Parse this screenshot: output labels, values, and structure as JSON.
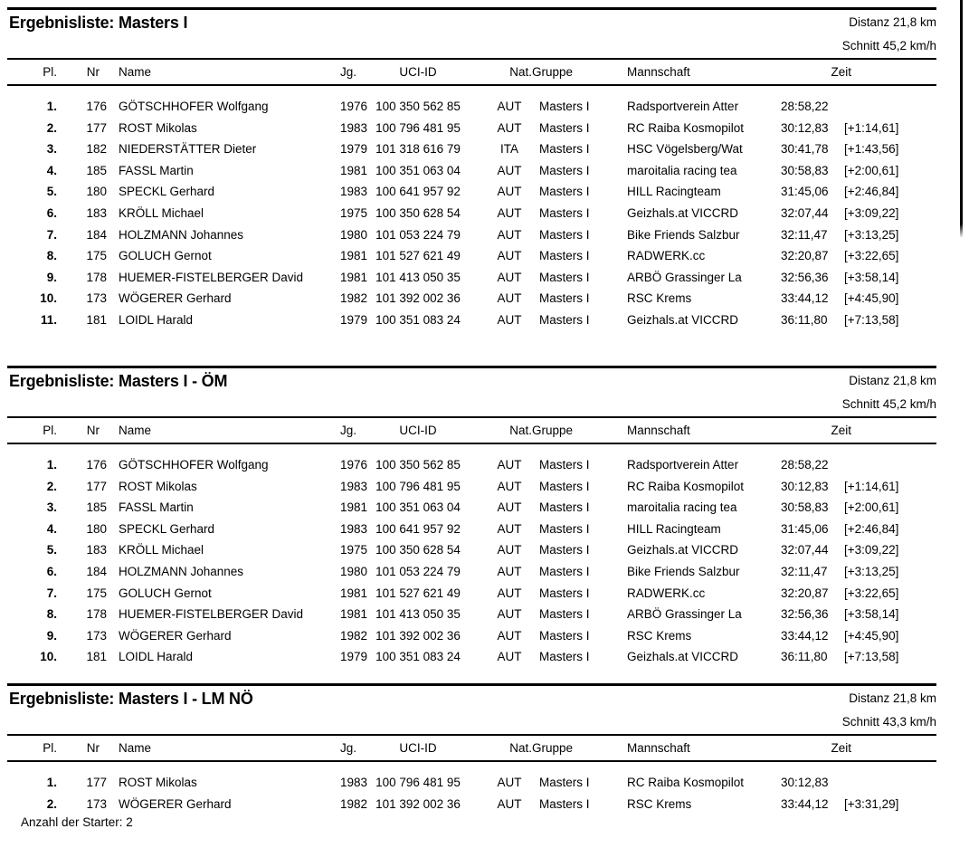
{
  "columns": {
    "pl": "Pl.",
    "nr": "Nr",
    "name": "Name",
    "jg": "Jg.",
    "uci": "UCI-ID",
    "nat": "Nat.",
    "gruppe": "Gruppe",
    "mannschaft": "Mannschaft",
    "zeit": "Zeit"
  },
  "tables": [
    {
      "title": "Ergebnisliste: Masters I",
      "distance": "Distanz 21,8 km",
      "average": "Schnitt 45,2 km/h",
      "rows": [
        {
          "pl": "1.",
          "nr": "176",
          "name": "GÖTSCHHOFER Wolfgang",
          "jg": "1976",
          "uci": "100 350 562 85",
          "nat": "AUT",
          "gruppe": "Masters I",
          "mannschaft": "Radsportverein Atter",
          "zeit": "28:58,22",
          "diff": ""
        },
        {
          "pl": "2.",
          "nr": "177",
          "name": "ROST Mikolas",
          "jg": "1983",
          "uci": "100 796 481 95",
          "nat": "AUT",
          "gruppe": "Masters I",
          "mannschaft": "RC Raiba Kosmopilot",
          "zeit": "30:12,83",
          "diff": "[+1:14,61]"
        },
        {
          "pl": "3.",
          "nr": "182",
          "name": "NIEDERSTÄTTER Dieter",
          "jg": "1979",
          "uci": "101 318 616 79",
          "nat": "ITA",
          "gruppe": "Masters I",
          "mannschaft": "HSC Vögelsberg/Wat",
          "zeit": "30:41,78",
          "diff": "[+1:43,56]"
        },
        {
          "pl": "4.",
          "nr": "185",
          "name": "FASSL Martin",
          "jg": "1981",
          "uci": "100 351 063 04",
          "nat": "AUT",
          "gruppe": "Masters I",
          "mannschaft": "maroitalia racing tea",
          "zeit": "30:58,83",
          "diff": "[+2:00,61]"
        },
        {
          "pl": "5.",
          "nr": "180",
          "name": "SPECKL Gerhard",
          "jg": "1983",
          "uci": "100 641 957 92",
          "nat": "AUT",
          "gruppe": "Masters I",
          "mannschaft": "HILL Racingteam",
          "zeit": "31:45,06",
          "diff": "[+2:46,84]"
        },
        {
          "pl": "6.",
          "nr": "183",
          "name": "KRÖLL Michael",
          "jg": "1975",
          "uci": "100 350 628 54",
          "nat": "AUT",
          "gruppe": "Masters I",
          "mannschaft": "Geizhals.at VICCRD",
          "zeit": "32:07,44",
          "diff": "[+3:09,22]"
        },
        {
          "pl": "7.",
          "nr": "184",
          "name": "HOLZMANN Johannes",
          "jg": "1980",
          "uci": "101 053 224 79",
          "nat": "AUT",
          "gruppe": "Masters I",
          "mannschaft": "Bike Friends Salzbur",
          "zeit": "32:11,47",
          "diff": "[+3:13,25]"
        },
        {
          "pl": "8.",
          "nr": "175",
          "name": "GOLUCH Gernot",
          "jg": "1981",
          "uci": "101 527 621 49",
          "nat": "AUT",
          "gruppe": "Masters I",
          "mannschaft": "RADWERK.cc",
          "zeit": "32:20,87",
          "diff": "[+3:22,65]"
        },
        {
          "pl": "9.",
          "nr": "178",
          "name": "HUEMER-FISTELBERGER David",
          "jg": "1981",
          "uci": "101 413 050 35",
          "nat": "AUT",
          "gruppe": "Masters I",
          "mannschaft": "ARBÖ Grassinger La",
          "zeit": "32:56,36",
          "diff": "[+3:58,14]"
        },
        {
          "pl": "10.",
          "nr": "173",
          "name": "WÖGERER Gerhard",
          "jg": "1982",
          "uci": "101 392 002 36",
          "nat": "AUT",
          "gruppe": "Masters I",
          "mannschaft": "RSC Krems",
          "zeit": "33:44,12",
          "diff": "[+4:45,90]"
        },
        {
          "pl": "11.",
          "nr": "181",
          "name": "LOIDL Harald",
          "jg": "1979",
          "uci": "100 351 083 24",
          "nat": "AUT",
          "gruppe": "Masters I",
          "mannschaft": "Geizhals.at VICCRD",
          "zeit": "36:11,80",
          "diff": "[+7:13,58]"
        }
      ]
    },
    {
      "title": "Ergebnisliste: Masters I - ÖM",
      "distance": "Distanz 21,8 km",
      "average": "Schnitt 45,2 km/h",
      "rows": [
        {
          "pl": "1.",
          "nr": "176",
          "name": "GÖTSCHHOFER Wolfgang",
          "jg": "1976",
          "uci": "100 350 562 85",
          "nat": "AUT",
          "gruppe": "Masters I",
          "mannschaft": "Radsportverein Atter",
          "zeit": "28:58,22",
          "diff": ""
        },
        {
          "pl": "2.",
          "nr": "177",
          "name": "ROST Mikolas",
          "jg": "1983",
          "uci": "100 796 481 95",
          "nat": "AUT",
          "gruppe": "Masters I",
          "mannschaft": "RC Raiba Kosmopilot",
          "zeit": "30:12,83",
          "diff": "[+1:14,61]"
        },
        {
          "pl": "3.",
          "nr": "185",
          "name": "FASSL Martin",
          "jg": "1981",
          "uci": "100 351 063 04",
          "nat": "AUT",
          "gruppe": "Masters I",
          "mannschaft": "maroitalia racing tea",
          "zeit": "30:58,83",
          "diff": "[+2:00,61]"
        },
        {
          "pl": "4.",
          "nr": "180",
          "name": "SPECKL Gerhard",
          "jg": "1983",
          "uci": "100 641 957 92",
          "nat": "AUT",
          "gruppe": "Masters I",
          "mannschaft": "HILL Racingteam",
          "zeit": "31:45,06",
          "diff": "[+2:46,84]"
        },
        {
          "pl": "5.",
          "nr": "183",
          "name": "KRÖLL Michael",
          "jg": "1975",
          "uci": "100 350 628 54",
          "nat": "AUT",
          "gruppe": "Masters I",
          "mannschaft": "Geizhals.at VICCRD",
          "zeit": "32:07,44",
          "diff": "[+3:09,22]"
        },
        {
          "pl": "6.",
          "nr": "184",
          "name": "HOLZMANN Johannes",
          "jg": "1980",
          "uci": "101 053 224 79",
          "nat": "AUT",
          "gruppe": "Masters I",
          "mannschaft": "Bike Friends Salzbur",
          "zeit": "32:11,47",
          "diff": "[+3:13,25]"
        },
        {
          "pl": "7.",
          "nr": "175",
          "name": "GOLUCH Gernot",
          "jg": "1981",
          "uci": "101 527 621 49",
          "nat": "AUT",
          "gruppe": "Masters I",
          "mannschaft": "RADWERK.cc",
          "zeit": "32:20,87",
          "diff": "[+3:22,65]"
        },
        {
          "pl": "8.",
          "nr": "178",
          "name": "HUEMER-FISTELBERGER David",
          "jg": "1981",
          "uci": "101 413 050 35",
          "nat": "AUT",
          "gruppe": "Masters I",
          "mannschaft": "ARBÖ Grassinger La",
          "zeit": "32:56,36",
          "diff": "[+3:58,14]"
        },
        {
          "pl": "9.",
          "nr": "173",
          "name": "WÖGERER Gerhard",
          "jg": "1982",
          "uci": "101 392 002 36",
          "nat": "AUT",
          "gruppe": "Masters I",
          "mannschaft": "RSC Krems",
          "zeit": "33:44,12",
          "diff": "[+4:45,90]"
        },
        {
          "pl": "10.",
          "nr": "181",
          "name": "LOIDL Harald",
          "jg": "1979",
          "uci": "100 351 083 24",
          "nat": "AUT",
          "gruppe": "Masters I",
          "mannschaft": "Geizhals.at VICCRD",
          "zeit": "36:11,80",
          "diff": "[+7:13,58]"
        }
      ]
    },
    {
      "title": "Ergebnisliste: Masters I - LM NÖ",
      "distance": "Distanz 21,8 km",
      "average": "Schnitt 43,3 km/h",
      "rows": [
        {
          "pl": "1.",
          "nr": "177",
          "name": "ROST Mikolas",
          "jg": "1983",
          "uci": "100 796 481 95",
          "nat": "AUT",
          "gruppe": "Masters I",
          "mannschaft": "RC Raiba Kosmopilot",
          "zeit": "30:12,83",
          "diff": ""
        },
        {
          "pl": "2.",
          "nr": "173",
          "name": "WÖGERER Gerhard",
          "jg": "1982",
          "uci": "101 392 002 36",
          "nat": "AUT",
          "gruppe": "Masters I",
          "mannschaft": "RSC Krems",
          "zeit": "33:44,12",
          "diff": "[+3:31,29]"
        }
      ]
    }
  ],
  "starter_note": "Anzahl der Starter: 2"
}
